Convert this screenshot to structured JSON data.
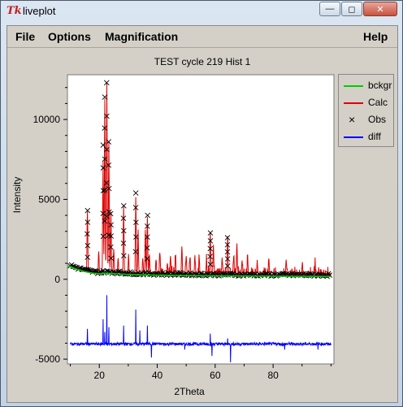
{
  "window": {
    "title": "liveplot",
    "app_icon": "Tk",
    "buttons": [
      "minimize-icon",
      "maximize-icon",
      "close-icon"
    ]
  },
  "menu": {
    "file": "File",
    "options": "Options",
    "magnification": "Magnification",
    "help": "Help"
  },
  "chart_data": {
    "type": "line",
    "title": "TEST cycle 219 Hist 1",
    "xlabel": "2Theta",
    "ylabel": "Intensity",
    "xlim": [
      9,
      101
    ],
    "ylim": [
      -5300,
      12800
    ],
    "x_ticks": [
      20,
      40,
      60,
      80
    ],
    "y_ticks": [
      -5000,
      0,
      5000,
      10000
    ],
    "legend": {
      "placement": "right-outside-top",
      "entries": [
        {
          "name": "bckgr",
          "color": "#00cc00",
          "style": "line"
        },
        {
          "name": "Calc",
          "color": "#e00000",
          "style": "line"
        },
        {
          "name": "Obs",
          "color": "#000000",
          "style": "x-marker"
        },
        {
          "name": "diff",
          "color": "#0000ff",
          "style": "line"
        }
      ]
    },
    "series": [
      {
        "name": "bckgr",
        "x": [
          9,
          12,
          15,
          18,
          20,
          22,
          25,
          30,
          35,
          40,
          50,
          60,
          70,
          80,
          90,
          100
        ],
        "values": [
          850,
          650,
          480,
          380,
          350,
          380,
          360,
          300,
          270,
          250,
          230,
          210,
          200,
          190,
          185,
          180
        ]
      },
      {
        "name": "Calc",
        "peaks": [
          [
            15.9,
            3700
          ],
          [
            19.8,
            1300
          ],
          [
            21.3,
            7000
          ],
          [
            21.9,
            10900
          ],
          [
            22.6,
            11900
          ],
          [
            23.3,
            8200
          ],
          [
            24.0,
            3800
          ],
          [
            25.0,
            1500
          ],
          [
            26.5,
            900
          ],
          [
            28.4,
            4200
          ],
          [
            30.1,
            1200
          ],
          [
            32.6,
            4800
          ],
          [
            33.4,
            2700
          ],
          [
            35.0,
            1000
          ],
          [
            35.9,
            2800
          ],
          [
            36.6,
            3600
          ],
          [
            37.3,
            1200
          ],
          [
            39.6,
            900
          ],
          [
            40.9,
            1300
          ],
          [
            43.5,
            700
          ],
          [
            44.6,
            1100
          ],
          [
            46.3,
            1000
          ],
          [
            48.5,
            1700
          ],
          [
            50.0,
            1200
          ],
          [
            51.3,
            800
          ],
          [
            53.0,
            1200
          ],
          [
            54.5,
            1100
          ],
          [
            57.0,
            900
          ],
          [
            58.3,
            2700
          ],
          [
            59.4,
            1800
          ],
          [
            62.4,
            1000
          ],
          [
            64.3,
            2400
          ],
          [
            66.4,
            1200
          ],
          [
            67.5,
            2000
          ],
          [
            69.3,
            900
          ],
          [
            71.2,
            1200
          ],
          [
            74.5,
            800
          ],
          [
            78.5,
            1000
          ],
          [
            84.5,
            900
          ],
          [
            90.0,
            500
          ],
          [
            94.5,
            600
          ]
        ]
      },
      {
        "name": "Obs",
        "peaks": [
          [
            15.9,
            4300
          ],
          [
            21.3,
            8400
          ],
          [
            21.9,
            11400
          ],
          [
            22.6,
            12300
          ],
          [
            23.3,
            8600
          ],
          [
            24.0,
            4100
          ],
          [
            28.4,
            4600
          ],
          [
            32.6,
            5400
          ],
          [
            36.6,
            4000
          ],
          [
            58.3,
            2900
          ],
          [
            64.3,
            2600
          ]
        ]
      },
      {
        "name": "diff",
        "baseline": -4050,
        "spikes": [
          [
            15.9,
            -3100
          ],
          [
            21.3,
            -2500
          ],
          [
            21.9,
            -3300
          ],
          [
            22.6,
            -1000
          ],
          [
            23.3,
            -3000
          ],
          [
            28.4,
            -2900
          ],
          [
            32.6,
            -1900
          ],
          [
            34.0,
            -3200
          ],
          [
            36.6,
            -2900
          ],
          [
            38.0,
            -4900
          ],
          [
            49.5,
            -4400
          ],
          [
            58.3,
            -3400
          ],
          [
            58.9,
            -4800
          ],
          [
            64.3,
            -3700
          ],
          [
            65.3,
            -5200
          ],
          [
            84.0,
            -4400
          ],
          [
            95.5,
            -4400
          ]
        ]
      }
    ]
  }
}
